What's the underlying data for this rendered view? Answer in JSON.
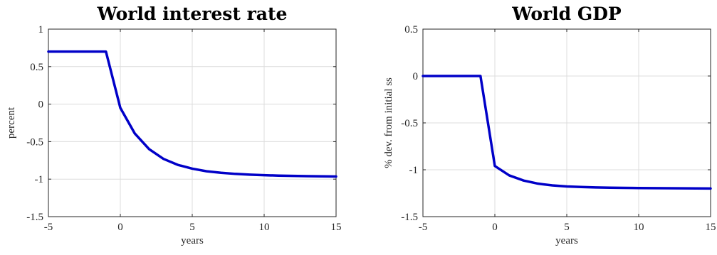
{
  "chart_data": [
    {
      "type": "line",
      "title": "World interest rate",
      "xlabel": "years",
      "ylabel": "percent",
      "xlim": [
        -5,
        15
      ],
      "ylim": [
        -1.5,
        1
      ],
      "xticks": [
        -5,
        0,
        5,
        10,
        15
      ],
      "xtick_labels": [
        "-5",
        "0",
        "5",
        "10",
        "15"
      ],
      "yticks": [
        -1.5,
        -1,
        -0.5,
        0,
        0.5,
        1
      ],
      "ytick_labels": [
        "-1.5",
        "-1",
        "-0.5",
        "0",
        "0.5",
        "1"
      ],
      "grid": true,
      "legend": "none",
      "series": [
        {
          "color": "#0000c8",
          "x": [
            -5,
            -4,
            -3,
            -2,
            -1,
            0,
            1,
            2,
            3,
            4,
            5,
            6,
            7,
            8,
            9,
            10,
            11,
            12,
            13,
            14,
            15
          ],
          "y": [
            0.7,
            0.7,
            0.7,
            0.7,
            0.7,
            -0.05,
            -0.39,
            -0.6,
            -0.73,
            -0.81,
            -0.86,
            -0.895,
            -0.915,
            -0.93,
            -0.94,
            -0.947,
            -0.953,
            -0.957,
            -0.96,
            -0.962,
            -0.965
          ]
        }
      ]
    },
    {
      "type": "line",
      "title": "World GDP",
      "xlabel": "years",
      "ylabel": "% dev. from initial ss",
      "xlim": [
        -5,
        15
      ],
      "ylim": [
        -1.5,
        0.5
      ],
      "xticks": [
        -5,
        0,
        5,
        10,
        15
      ],
      "xtick_labels": [
        "-5",
        "0",
        "5",
        "10",
        "15"
      ],
      "yticks": [
        -1.5,
        -1,
        -0.5,
        0,
        0.5
      ],
      "ytick_labels": [
        "-1.5",
        "-1",
        "-0.5",
        "0",
        "0.5"
      ],
      "grid": true,
      "legend": "none",
      "series": [
        {
          "color": "#0000c8",
          "x": [
            -5,
            -4,
            -3,
            -2,
            -1,
            0,
            1,
            2,
            3,
            4,
            5,
            6,
            7,
            8,
            9,
            10,
            11,
            12,
            13,
            14,
            15
          ],
          "y": [
            0,
            0,
            0,
            0,
            0,
            -0.96,
            -1.06,
            -1.115,
            -1.148,
            -1.167,
            -1.178,
            -1.184,
            -1.188,
            -1.191,
            -1.193,
            -1.195,
            -1.196,
            -1.197,
            -1.198,
            -1.199,
            -1.2
          ]
        }
      ]
    }
  ]
}
